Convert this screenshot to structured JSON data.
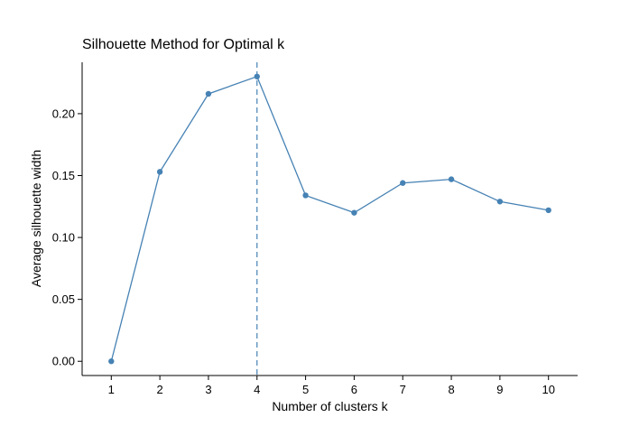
{
  "chart_data": {
    "type": "line",
    "title": "Silhouette Method for Optimal k",
    "xlabel": "Number of clusters k",
    "ylabel": "Average silhouette width",
    "x": [
      1,
      2,
      3,
      4,
      5,
      6,
      7,
      8,
      9,
      10
    ],
    "series": [
      {
        "values": [
          0.0,
          0.153,
          0.216,
          0.23,
          0.134,
          0.12,
          0.144,
          0.147,
          0.129,
          0.122
        ]
      }
    ],
    "x_ticks": [
      "1",
      "2",
      "3",
      "4",
      "5",
      "6",
      "7",
      "8",
      "9",
      "10"
    ],
    "y_ticks": [
      {
        "value": 0.0,
        "label": "0.00"
      },
      {
        "value": 0.05,
        "label": "0.05"
      },
      {
        "value": 0.1,
        "label": "0.10"
      },
      {
        "value": 0.15,
        "label": "0.15"
      },
      {
        "value": 0.2,
        "label": "0.20"
      }
    ],
    "xlim": [
      0.4,
      10.6
    ],
    "ylim": [
      -0.0115,
      0.2415
    ],
    "optimal_k": 4,
    "grid": false,
    "legend": "none",
    "colors": {
      "series": "#4682b4",
      "axis": "#000000"
    }
  }
}
